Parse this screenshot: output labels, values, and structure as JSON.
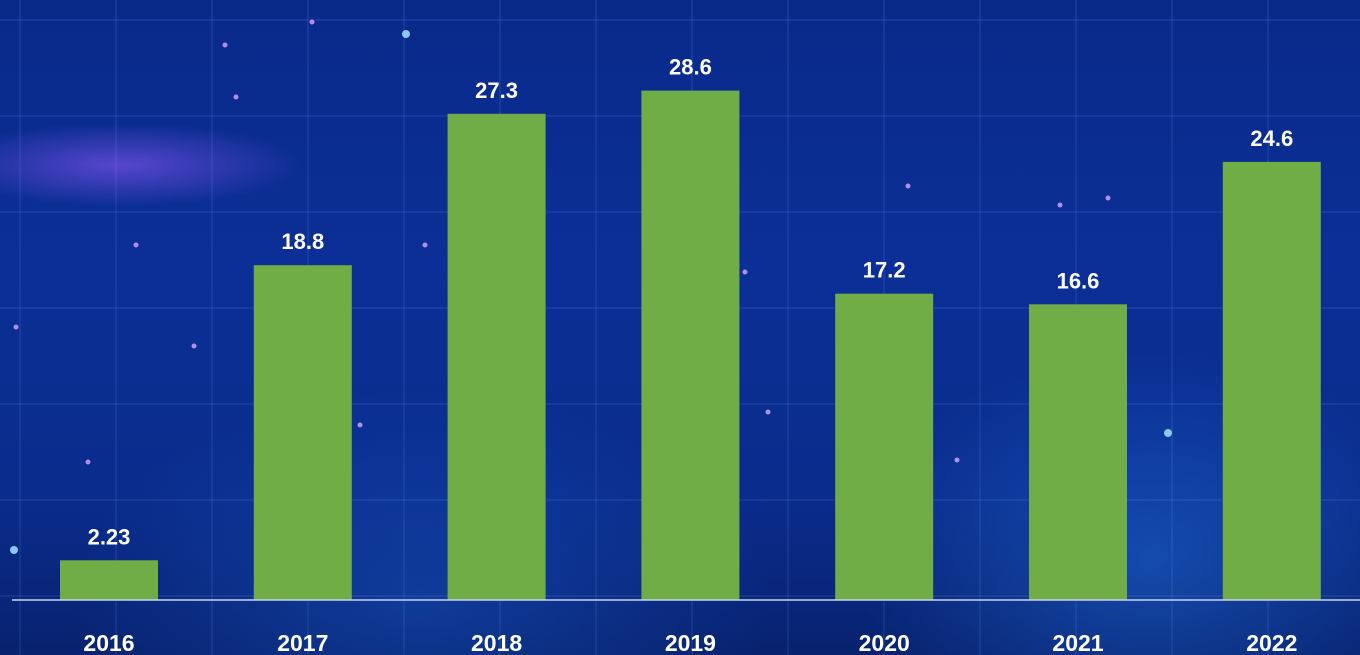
{
  "chart_data": {
    "type": "bar",
    "categories": [
      "2016",
      "2017",
      "2018",
      "2019",
      "2020",
      "2021",
      "2022"
    ],
    "values": [
      2.23,
      18.8,
      27.3,
      28.6,
      17.2,
      16.6,
      24.6
    ],
    "value_labels": [
      "2.23",
      "18.8",
      "27.3",
      "28.6",
      "17.2",
      "16.6",
      "24.6"
    ],
    "title": "",
    "xlabel": "",
    "ylabel": "",
    "ylim": [
      0,
      30.6
    ],
    "grid": false,
    "legend": "none",
    "colors": {
      "bar": "#70ad47",
      "text": "#ffffff",
      "axis": "#c9d3ee"
    }
  }
}
